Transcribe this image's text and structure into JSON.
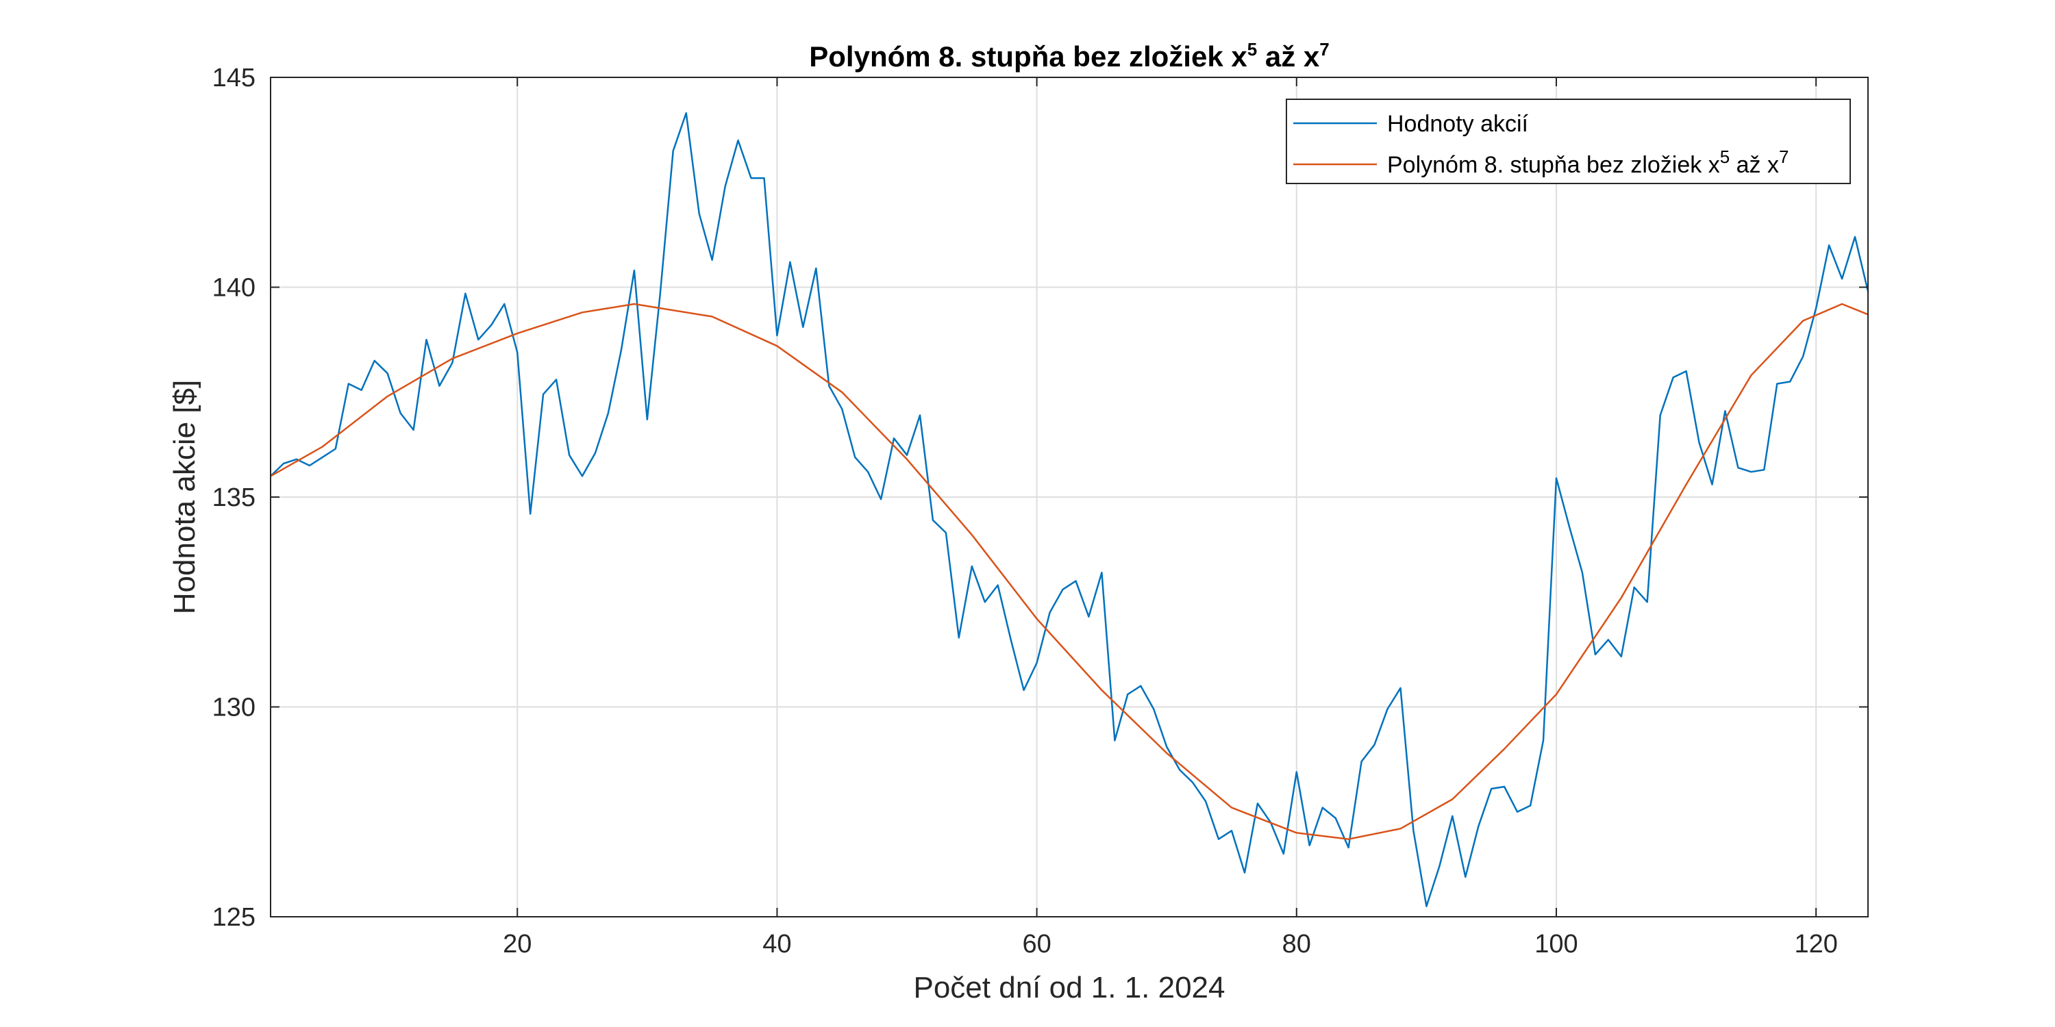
{
  "chart_data": {
    "type": "line",
    "title": {
      "base": "Polynóm 8. stupňa bez zložiek x",
      "sup1": "5",
      "mid": " až x",
      "sup2": "7"
    },
    "xlabel": "Počet dní od 1. 1. 2024",
    "ylabel": "Hodnota akcie [$]",
    "xlim": [
      1,
      124
    ],
    "ylim": [
      125,
      145
    ],
    "xticks": [
      20,
      40,
      60,
      80,
      100,
      120
    ],
    "yticks": [
      125,
      130,
      135,
      140,
      145
    ],
    "grid": true,
    "legend_position": "top-right",
    "series": [
      {
        "name": "Hodnoty akcií",
        "color": "#0072BD",
        "x": [
          1,
          2,
          3,
          4,
          5,
          6,
          7,
          8,
          9,
          10,
          11,
          12,
          13,
          14,
          15,
          16,
          17,
          18,
          19,
          20,
          21,
          22,
          23,
          24,
          25,
          26,
          27,
          28,
          29,
          30,
          31,
          32,
          33,
          34,
          35,
          36,
          37,
          38,
          39,
          40,
          41,
          42,
          43,
          44,
          45,
          46,
          47,
          48,
          49,
          50,
          51,
          52,
          53,
          54,
          55,
          56,
          57,
          58,
          59,
          60,
          61,
          62,
          63,
          64,
          65,
          66,
          67,
          68,
          69,
          70,
          71,
          72,
          73,
          74,
          75,
          76,
          77,
          78,
          79,
          80,
          81,
          82,
          83,
          84,
          85,
          86,
          87,
          88,
          89,
          90,
          91,
          92,
          93,
          94,
          95,
          96,
          97,
          98,
          99,
          100,
          101,
          102,
          103,
          104,
          105,
          106,
          107,
          108,
          109,
          110,
          111,
          112,
          113,
          114,
          115,
          116,
          117,
          118,
          119,
          120,
          121,
          122,
          123,
          124
        ],
        "y": [
          135.5,
          135.8,
          135.9,
          135.75,
          135.95,
          136.15,
          137.7,
          137.55,
          138.25,
          137.95,
          137.0,
          136.6,
          138.75,
          137.65,
          138.2,
          139.85,
          138.75,
          139.1,
          139.6,
          138.45,
          134.6,
          137.45,
          137.8,
          136.0,
          135.5,
          136.05,
          137.0,
          138.5,
          140.4,
          136.85,
          139.85,
          143.25,
          144.15,
          141.75,
          140.65,
          142.4,
          143.5,
          142.6,
          142.6,
          138.85,
          140.6,
          139.05,
          140.45,
          137.65,
          137.1,
          135.95,
          135.6,
          134.95,
          136.4,
          136.0,
          136.95,
          134.45,
          134.15,
          131.65,
          133.35,
          132.5,
          132.9,
          131.6,
          130.4,
          131.05,
          132.25,
          132.8,
          133.0,
          132.15,
          133.2,
          129.2,
          130.3,
          130.5,
          129.95,
          129.05,
          128.5,
          128.2,
          127.75,
          126.85,
          127.05,
          126.05,
          127.7,
          127.25,
          126.5,
          128.45,
          126.7,
          127.6,
          127.35,
          126.65,
          128.7,
          129.1,
          129.95,
          130.45,
          127.05,
          125.25,
          126.2,
          127.4,
          125.95,
          127.15,
          128.05,
          128.1,
          127.5,
          127.65,
          129.2,
          135.45,
          134.3,
          133.2,
          131.25,
          131.6,
          131.2,
          132.85,
          132.5,
          136.95,
          137.85,
          138.0,
          136.3,
          135.3,
          137.05,
          135.7,
          135.6,
          135.65,
          137.7,
          137.75,
          138.35,
          139.5,
          141.0,
          140.2,
          141.2,
          139.9
        ]
      },
      {
        "name": "Polynóm 8. stupňa bez zložiek x5 až x7",
        "legend_label": {
          "base": "Polynóm 8. stupňa bez zložiek x",
          "sup1": "5",
          "mid": " až x",
          "sup2": "7"
        },
        "color": "#D95319",
        "x": [
          1,
          5,
          10,
          15,
          20,
          25,
          29,
          35,
          40,
          45,
          50,
          55,
          60,
          65,
          70,
          75,
          80,
          84,
          88,
          92,
          96,
          100,
          105,
          110,
          115,
          119,
          122,
          124
        ],
        "y": [
          135.5,
          136.2,
          137.4,
          138.3,
          138.9,
          139.4,
          139.6,
          139.3,
          138.6,
          137.5,
          135.9,
          134.1,
          132.1,
          130.4,
          128.9,
          127.6,
          127.0,
          126.85,
          127.1,
          127.8,
          129.0,
          130.3,
          132.6,
          135.3,
          137.9,
          139.2,
          139.6,
          139.35
        ]
      }
    ]
  }
}
